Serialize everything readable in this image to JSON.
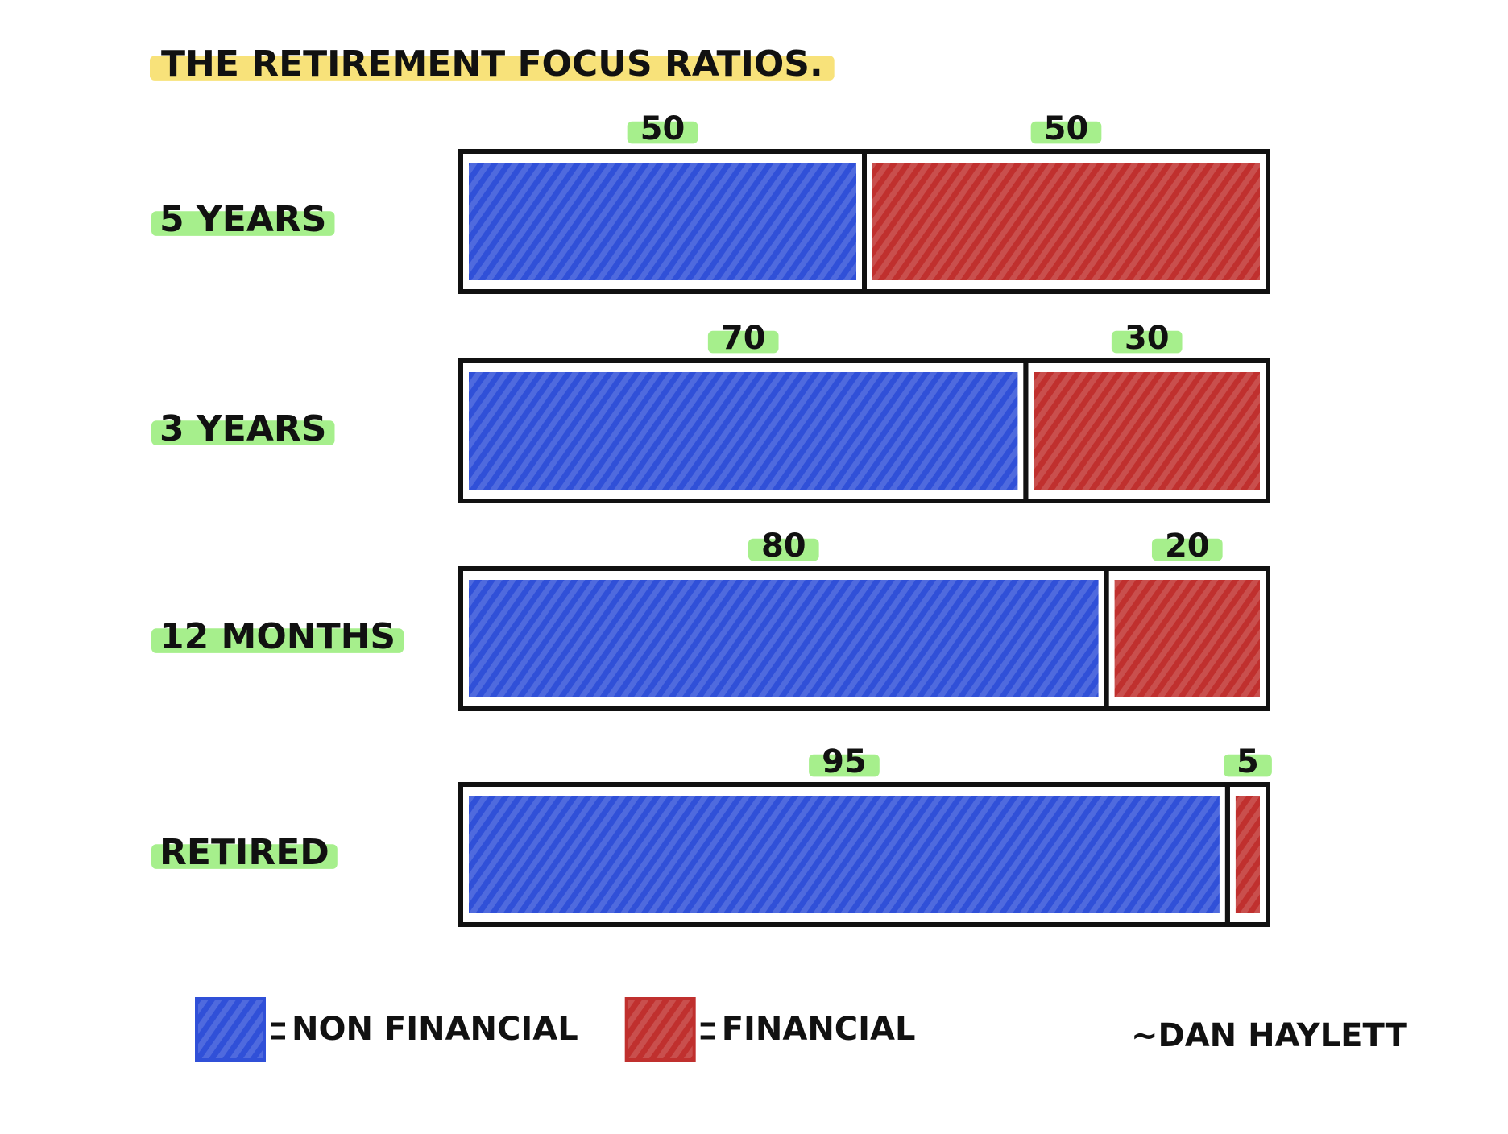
{
  "chart_data": {
    "type": "stacked-bar-100",
    "title": "THE RETIREMENT FOCUS RATIOS.",
    "categories": [
      "5 YEARS",
      "3 YEARS",
      "12 MONTHS",
      "RETIRED"
    ],
    "series": [
      {
        "name": "NON FINANCIAL",
        "color": "#3050d8",
        "values": [
          50,
          70,
          80,
          95
        ]
      },
      {
        "name": "FINANCIAL",
        "color": "#c0302e",
        "values": [
          50,
          30,
          20,
          5
        ]
      }
    ],
    "signature": "~DAN HAYLETT"
  }
}
